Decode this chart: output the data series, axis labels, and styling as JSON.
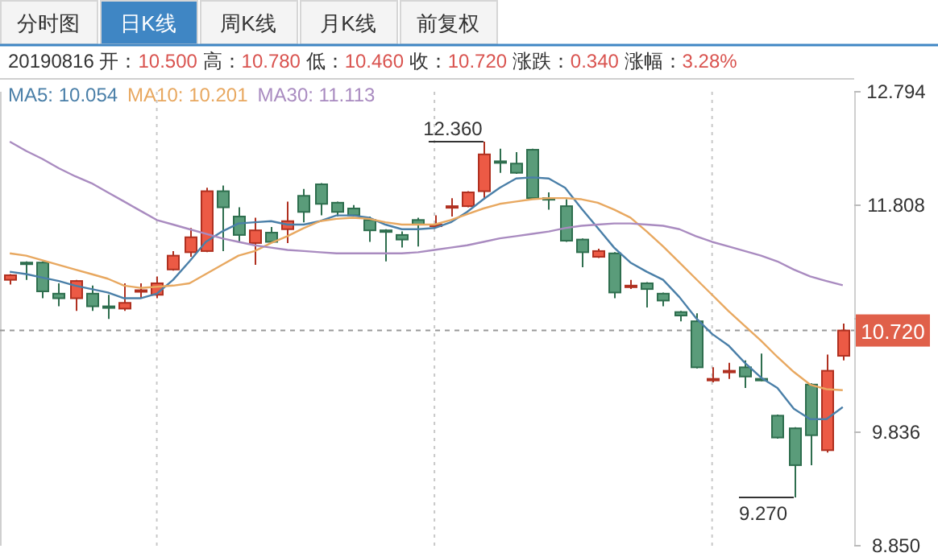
{
  "chart_data": {
    "type": "candlestick",
    "categories": [
      null,
      null,
      null,
      null,
      null,
      null,
      null,
      null,
      null,
      null,
      null,
      null,
      null,
      null,
      null,
      null,
      null,
      null,
      null,
      null,
      null,
      null,
      null,
      null,
      null,
      null,
      null,
      null,
      null,
      null,
      null,
      null,
      null,
      null,
      null,
      null,
      null,
      null,
      null,
      null,
      null,
      null,
      null,
      null,
      null,
      null,
      null,
      null,
      null,
      null,
      null,
      null
    ],
    "ohlc": [
      [
        11.16,
        11.21,
        11.12,
        11.2
      ],
      [
        11.31,
        11.32,
        11.16,
        11.3
      ],
      [
        11.31,
        11.32,
        11.0,
        11.06
      ],
      [
        11.04,
        11.13,
        10.93,
        11.0
      ],
      [
        11.0,
        11.16,
        10.89,
        11.15
      ],
      [
        11.04,
        11.11,
        10.89,
        10.93
      ],
      [
        10.93,
        11.03,
        10.82,
        10.92
      ],
      [
        10.91,
        11.13,
        10.89,
        10.96
      ],
      [
        11.06,
        11.13,
        11.0,
        11.07
      ],
      [
        11.03,
        11.19,
        11.0,
        11.13
      ],
      [
        11.25,
        11.41,
        11.24,
        11.37
      ],
      [
        11.4,
        11.61,
        11.36,
        11.53
      ],
      [
        11.41,
        11.96,
        11.4,
        11.93
      ],
      [
        11.93,
        11.98,
        11.41,
        11.79
      ],
      [
        11.71,
        11.79,
        11.49,
        11.55
      ],
      [
        11.48,
        11.7,
        11.29,
        11.59
      ],
      [
        11.57,
        11.62,
        11.48,
        11.49
      ],
      [
        11.6,
        11.84,
        11.48,
        11.67
      ],
      [
        11.89,
        11.95,
        11.66,
        11.75
      ],
      [
        11.99,
        12.0,
        11.72,
        11.82
      ],
      [
        11.83,
        11.84,
        11.71,
        11.75
      ],
      [
        11.78,
        11.81,
        11.71,
        11.72
      ],
      [
        11.68,
        11.71,
        11.49,
        11.59
      ],
      [
        11.59,
        11.6,
        11.32,
        11.58
      ],
      [
        11.55,
        11.58,
        11.44,
        11.51
      ],
      [
        11.68,
        11.7,
        11.45,
        11.64
      ],
      [
        11.63,
        11.72,
        11.62,
        11.64
      ],
      [
        11.79,
        11.87,
        11.71,
        11.8
      ],
      [
        11.8,
        11.93,
        11.79,
        11.92
      ],
      [
        11.93,
        12.36,
        11.86,
        12.25
      ],
      [
        12.19,
        12.3,
        12.09,
        12.18
      ],
      [
        12.17,
        12.27,
        12.08,
        12.09
      ],
      [
        12.29,
        12.3,
        11.86,
        11.87
      ],
      [
        11.87,
        11.92,
        11.77,
        11.86
      ],
      [
        11.8,
        11.86,
        11.49,
        11.5
      ],
      [
        11.51,
        11.52,
        11.27,
        11.4
      ],
      [
        11.36,
        11.43,
        11.35,
        11.41
      ],
      [
        11.39,
        11.4,
        11.0,
        11.05
      ],
      [
        11.1,
        11.16,
        11.08,
        11.11
      ],
      [
        11.13,
        11.14,
        10.92,
        11.08
      ],
      [
        11.04,
        11.05,
        10.93,
        10.98
      ],
      [
        10.88,
        10.89,
        10.8,
        10.85
      ],
      [
        10.8,
        10.87,
        10.39,
        10.4
      ],
      [
        10.29,
        10.4,
        10.27,
        10.3
      ],
      [
        10.36,
        10.44,
        10.3,
        10.37
      ],
      [
        10.4,
        10.46,
        10.22,
        10.32
      ],
      [
        10.3,
        10.52,
        10.28,
        10.29
      ],
      [
        9.98,
        9.99,
        9.78,
        9.79
      ],
      [
        9.87,
        9.88,
        9.27,
        9.55
      ],
      [
        10.25,
        10.26,
        9.55,
        9.81
      ],
      [
        9.68,
        10.51,
        9.66,
        10.37
      ],
      [
        10.5,
        10.78,
        10.46,
        10.72
      ]
    ],
    "series": [
      {
        "name": "MA5: 10.054",
        "type": "line",
        "color": "#4a7fa8",
        "values": [
          11.23,
          11.21,
          11.18,
          11.15,
          11.11,
          11.08,
          11.05,
          11.0,
          11.0,
          11.04,
          11.16,
          11.32,
          11.49,
          11.58,
          11.65,
          11.66,
          11.67,
          11.64,
          11.64,
          11.67,
          11.72,
          11.72,
          11.7,
          11.64,
          11.6,
          11.6,
          11.61,
          11.66,
          11.75,
          11.86,
          11.96,
          12.04,
          12.05,
          12.04,
          11.96,
          11.78,
          11.61,
          11.44,
          11.31,
          11.23,
          11.16,
          11.01,
          10.83,
          10.69,
          10.59,
          10.44,
          10.31,
          10.22,
          10.04,
          9.95,
          9.95,
          10.054
        ]
      },
      {
        "name": "MA10: 10.201",
        "type": "line",
        "color": "#e8a860",
        "values": [
          11.39,
          11.37,
          11.33,
          11.29,
          11.25,
          11.21,
          11.17,
          11.11,
          11.09,
          11.1,
          11.11,
          11.13,
          11.21,
          11.29,
          11.37,
          11.41,
          11.48,
          11.54,
          11.61,
          11.67,
          11.69,
          11.7,
          11.69,
          11.66,
          11.64,
          11.64,
          11.64,
          11.68,
          11.73,
          11.78,
          11.82,
          11.84,
          11.86,
          11.87,
          11.87,
          11.86,
          11.83,
          11.77,
          11.7,
          11.58,
          11.45,
          11.31,
          11.17,
          11.03,
          10.89,
          10.76,
          10.63,
          10.49,
          10.36,
          10.25,
          10.21,
          10.201
        ]
      },
      {
        "name": "MA30: 11.113",
        "type": "line",
        "color": "#a98bc0",
        "values": [
          12.36,
          12.28,
          12.21,
          12.13,
          12.06,
          12.0,
          11.92,
          11.84,
          11.76,
          11.68,
          11.64,
          11.6,
          11.56,
          11.52,
          11.49,
          11.46,
          11.44,
          11.42,
          11.41,
          11.4,
          11.39,
          11.39,
          11.39,
          11.39,
          11.39,
          11.4,
          11.42,
          11.44,
          11.46,
          11.49,
          11.52,
          11.54,
          11.56,
          11.58,
          11.61,
          11.63,
          11.64,
          11.65,
          11.65,
          11.64,
          11.63,
          11.6,
          11.54,
          11.49,
          11.45,
          11.41,
          11.37,
          11.32,
          11.25,
          11.19,
          11.15,
          11.113
        ]
      }
    ],
    "ylim": [
      8.85,
      12.794
    ],
    "yticks": [
      12.794,
      11.808,
      {
        "value": 10.822,
        "label": null
      },
      9.836,
      {
        "value": 8.85,
        "label": "8.850"
      }
    ],
    "ref_lines": [
      {
        "axis": "y",
        "value": 10.72,
        "label": "10.720",
        "line_style": "dashed"
      }
    ],
    "legend": "top left",
    "grid": "x",
    "annotations": [
      "分时图",
      "日K线",
      "周K线",
      "月K线",
      "前复权",
      "20190816 开：10.500 高：10.780 低：10.460 收：10.720 涨跌：0.340 涨幅：3.28%",
      "12.360",
      "9.270"
    ]
  }
}
